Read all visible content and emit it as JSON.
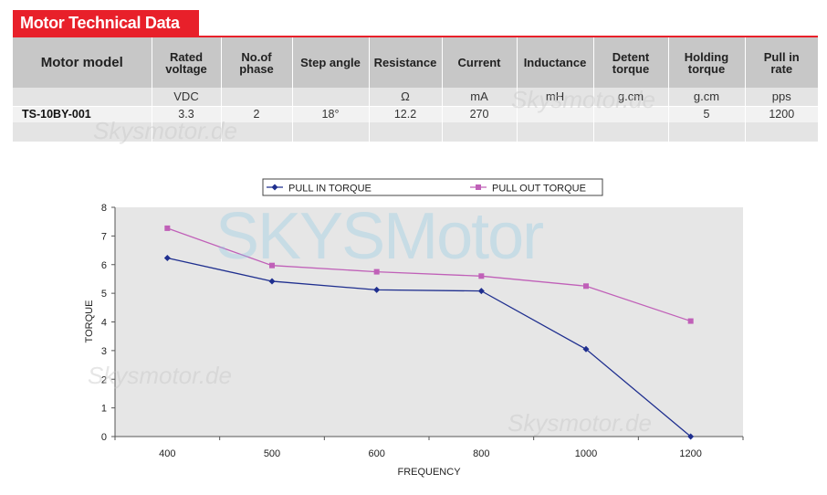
{
  "section_title": "Motor Technical Data",
  "table": {
    "model_header": "Motor model",
    "columns": [
      {
        "line1": "Rated",
        "line2": "voltage",
        "unit": "VDC"
      },
      {
        "line1": "No.of",
        "line2": "phase",
        "unit": ""
      },
      {
        "line1": "Step angle",
        "line2": "",
        "unit": ""
      },
      {
        "line1": "Resistance",
        "line2": "",
        "unit": "Ω"
      },
      {
        "line1": "Current",
        "line2": "",
        "unit": "mA"
      },
      {
        "line1": "Inductance",
        "line2": "",
        "unit": "mH"
      },
      {
        "line1": "Detent",
        "line2": "torque",
        "unit": "g.cm"
      },
      {
        "line1": "Holding",
        "line2": "torque",
        "unit": "g.cm"
      },
      {
        "line1": "Pull in",
        "line2": "rate",
        "unit": "pps"
      }
    ],
    "rows": [
      {
        "model": "TS-10BY-001",
        "values": [
          "3.3",
          "2",
          "18°",
          "12.2",
          "270",
          "",
          "",
          "5",
          "1200"
        ]
      }
    ]
  },
  "watermark_main": "SKYSMotor",
  "watermark_small": "Skysmotor.de",
  "chart_data": {
    "type": "line",
    "categories": [
      "400",
      "500",
      "600",
      "800",
      "1000",
      "1200"
    ],
    "series": [
      {
        "name": "PULL IN TORQUE",
        "color": "#1f2f8f",
        "marker": "diamond",
        "values": [
          6.23,
          5.42,
          5.12,
          5.08,
          3.05,
          0.0
        ]
      },
      {
        "name": "PULL OUT TORQUE",
        "color": "#c060b8",
        "marker": "square",
        "values": [
          7.27,
          5.97,
          5.75,
          5.6,
          5.25,
          4.03
        ]
      }
    ],
    "xlabel": "FREQUENCY",
    "ylabel": "TORQUE",
    "ylim": [
      0,
      8
    ],
    "yticks": [
      "0",
      "1",
      "2",
      "3",
      "4",
      "5",
      "6",
      "7",
      "8"
    ],
    "plot_background": "#e6e6e6",
    "legend_position": "top"
  }
}
